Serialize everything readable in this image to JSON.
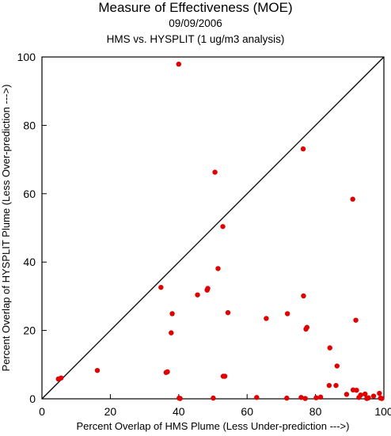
{
  "header": {
    "title": "Measure of Effectiveness (MOE)",
    "date": "09/09/2006",
    "subtitle": "HMS vs. HYSPLIT  (1 ug/m3 analysis)"
  },
  "chart_data": {
    "type": "scatter",
    "title": "Measure of Effectiveness (MOE)",
    "subtitle": "09/09/2006 — HMS vs. HYSPLIT  (1 ug/m3 analysis)",
    "xlabel": "Percent Overlap of HMS Plume (Less Under-prediction --->)",
    "ylabel": "Percent Overlap of HYSPLIT Plume (Less Over-prediction --->)",
    "xlim": [
      0,
      100
    ],
    "ylim": [
      0,
      100
    ],
    "xticks": [
      0,
      20,
      40,
      60,
      80,
      100
    ],
    "yticks": [
      0,
      20,
      40,
      60,
      80,
      100
    ],
    "reference_line": "y = x diagonal",
    "grid": false,
    "point_color": "#e00000",
    "points": [
      [
        4.8,
        5.8
      ],
      [
        5.6,
        6.1
      ],
      [
        16.2,
        8.3
      ],
      [
        34.8,
        32.6
      ],
      [
        36.3,
        7.7
      ],
      [
        36.7,
        7.9
      ],
      [
        37.8,
        19.3
      ],
      [
        38.1,
        24.9
      ],
      [
        40.0,
        97.9
      ],
      [
        40.1,
        0.2
      ],
      [
        40.4,
        0.1
      ],
      [
        45.5,
        30.4
      ],
      [
        48.3,
        31.8
      ],
      [
        48.5,
        32.3
      ],
      [
        50.1,
        0.2
      ],
      [
        50.6,
        66.3
      ],
      [
        51.5,
        38.1
      ],
      [
        52.9,
        50.4
      ],
      [
        53.0,
        6.6
      ],
      [
        53.5,
        6.6
      ],
      [
        54.4,
        25.2
      ],
      [
        62.8,
        0.4
      ],
      [
        65.6,
        23.5
      ],
      [
        71.6,
        0.2
      ],
      [
        71.8,
        24.9
      ],
      [
        75.8,
        0.4
      ],
      [
        76.4,
        73.1
      ],
      [
        76.5,
        30.1
      ],
      [
        77.0,
        0.1
      ],
      [
        77.2,
        20.4
      ],
      [
        77.5,
        20.9
      ],
      [
        80.2,
        0.3
      ],
      [
        81.5,
        0.5
      ],
      [
        84.0,
        3.9
      ],
      [
        84.2,
        14.9
      ],
      [
        86.0,
        3.9
      ],
      [
        86.3,
        9.6
      ],
      [
        89.1,
        1.3
      ],
      [
        90.9,
        58.4
      ],
      [
        91.0,
        2.6
      ],
      [
        91.8,
        23.0
      ],
      [
        92.0,
        2.5
      ],
      [
        92.7,
        0.4
      ],
      [
        93.2,
        1.1
      ],
      [
        94.5,
        1.4
      ],
      [
        95.0,
        0.1
      ],
      [
        95.5,
        0.3
      ],
      [
        97.0,
        0.8
      ],
      [
        98.7,
        1.6
      ],
      [
        99.0,
        0.2
      ],
      [
        99.4,
        0.1
      ]
    ]
  }
}
